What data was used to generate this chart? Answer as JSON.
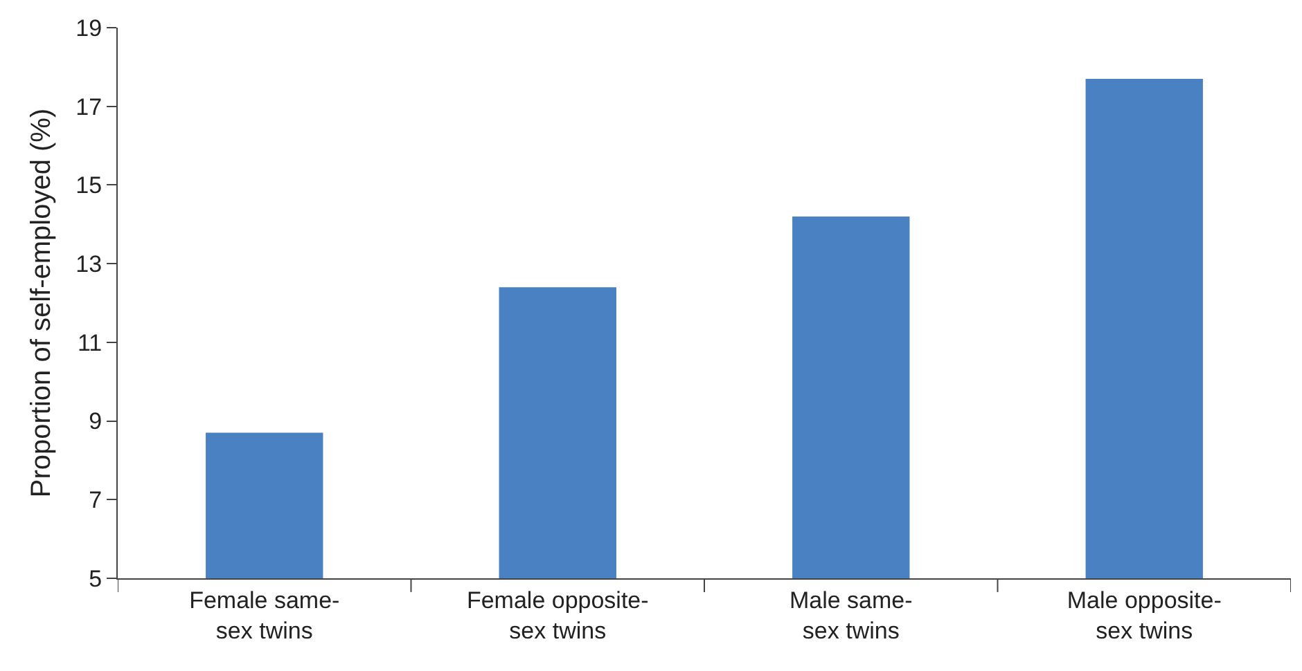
{
  "chart_data": {
    "type": "bar",
    "ylabel": "Proportion of self-employed (%)",
    "categories": [
      "Female same-\nsex twins",
      "Female opposite-\nsex twins",
      "Male same-\nsex twins",
      "Male opposite-\nsex twins"
    ],
    "values": [
      8.7,
      12.4,
      14.2,
      17.7
    ],
    "color": "#4a81c2",
    "ylim": [
      5,
      19
    ],
    "yticks": [
      5,
      7,
      9,
      11,
      13,
      15,
      17,
      19
    ]
  }
}
